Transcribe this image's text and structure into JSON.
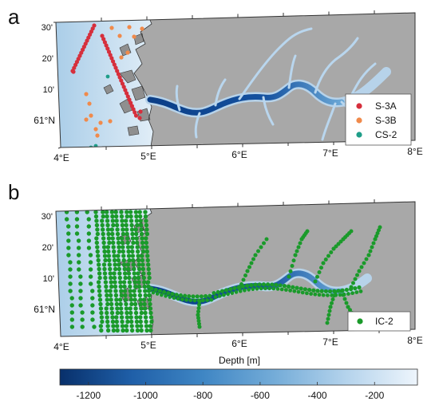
{
  "panels": [
    {
      "label": "a",
      "legend": [
        {
          "name": "S-3A",
          "color": "#d62f3c"
        },
        {
          "name": "S-3B",
          "color": "#f08a4b"
        },
        {
          "name": "CS-2",
          "color": "#1f9e89"
        }
      ]
    },
    {
      "label": "b",
      "legend": [
        {
          "name": "IC-2",
          "color": "#1a9a2a"
        }
      ]
    }
  ],
  "lon_ticks": [
    "4°E",
    "5°E",
    "6°E",
    "7°E",
    "8°E"
  ],
  "lat_ticks": [
    "30'",
    "20'",
    "10'",
    "61°N"
  ],
  "colorbar": {
    "title": "Depth [m]",
    "ticks": [
      "-1200",
      "-1000",
      "-800",
      "-600",
      "-400",
      "-200"
    ],
    "tick_values": [
      -1200,
      -1000,
      -800,
      -600,
      -400,
      -200
    ],
    "range": [
      -1300,
      -50
    ],
    "colormap": "Blues (dark=deep, light=shallow)"
  },
  "colors": {
    "land": "#a8a8a8",
    "coast_outline": "#3a3a3a",
    "shallow_sea": "#cfe3f1",
    "deep_sea": "#0b3c82",
    "frame": "#333333"
  },
  "map_data": {
    "region": {
      "lon": [
        4,
        8
      ],
      "lat": [
        60.92,
        61.55
      ]
    }
  }
}
